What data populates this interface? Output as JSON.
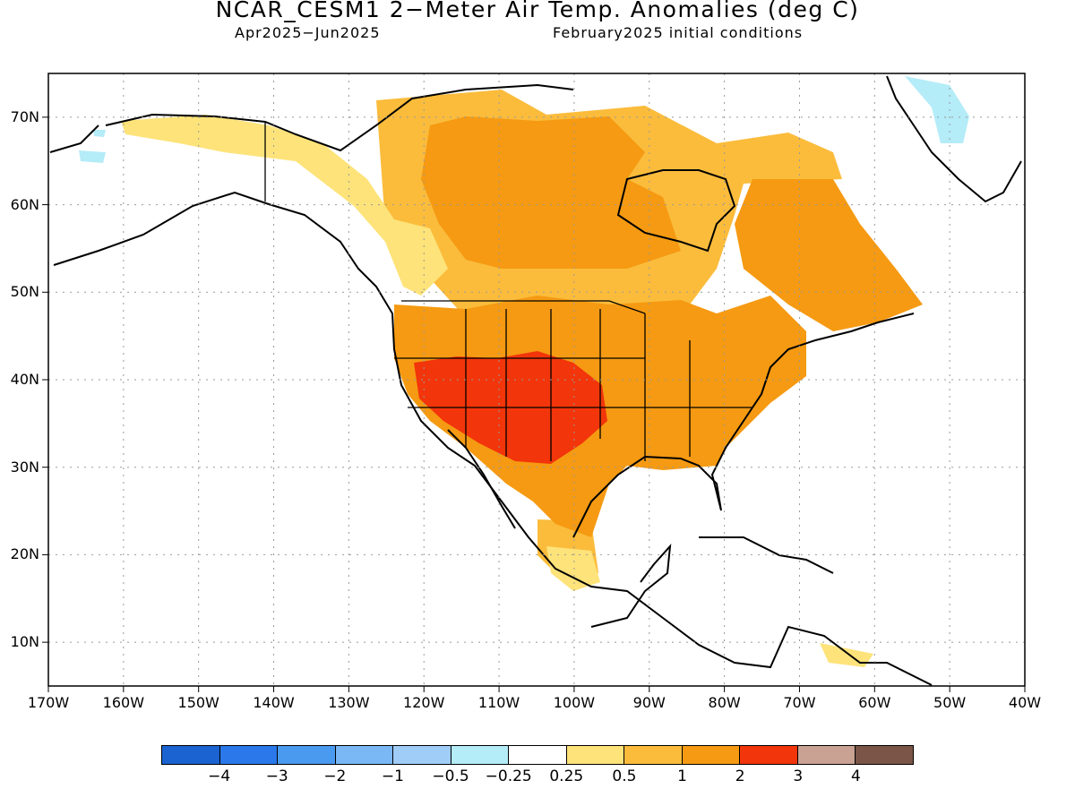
{
  "header": {
    "title": "NCAR_CESM1 2−Meter Air Temp. Anomalies (deg C)",
    "period": "Apr2025−Jun2025",
    "init": "February2025 initial conditions"
  },
  "axes": {
    "lon_labels": [
      "170W",
      "160W",
      "150W",
      "140W",
      "130W",
      "120W",
      "110W",
      "100W",
      "90W",
      "80W",
      "70W",
      "60W",
      "50W",
      "40W"
    ],
    "lat_labels": [
      "70N",
      "60N",
      "50N",
      "40N",
      "30N",
      "20N",
      "10N"
    ]
  },
  "colorbar": {
    "colors": [
      "#1a63d0",
      "#2a78ea",
      "#4a9af0",
      "#7ab8f5",
      "#9fcdf8",
      "#b4ecf8",
      "#ffffff",
      "#fde37a",
      "#fbbc3c",
      "#f59a12",
      "#f2350a",
      "#c9a293",
      "#7a5548"
    ],
    "labels": [
      "−4",
      "−3",
      "−2",
      "−1",
      "−0.5",
      "−0.25",
      "0.25",
      "0.5",
      "1",
      "2",
      "3",
      "4"
    ]
  },
  "map_data": {
    "region": "North America",
    "lon_range": [
      -170,
      -40
    ],
    "lat_range": [
      5,
      75
    ],
    "anomaly_regions": [
      {
        "area": "Southwest US (Nevada, Utah, Arizona, Colorado, New Mexico)",
        "category": "2 to 3",
        "color": "#f2350a"
      },
      {
        "area": "Central and Eastern US, Canada interior",
        "category": "1 to 2",
        "color": "#f59a12"
      },
      {
        "area": "Western Canada, Alaska interior",
        "category": "0.5 to 1",
        "color": "#fbbc3c"
      },
      {
        "area": "Pacific Northwest, Alaska coast, southern Mexico",
        "category": "0.25 to 0.5",
        "color": "#fde37a"
      },
      {
        "area": "Eastern Greenland coast, Bering coast patches",
        "category": "-0.5 to -0.25",
        "color": "#b4ecf8"
      }
    ]
  }
}
